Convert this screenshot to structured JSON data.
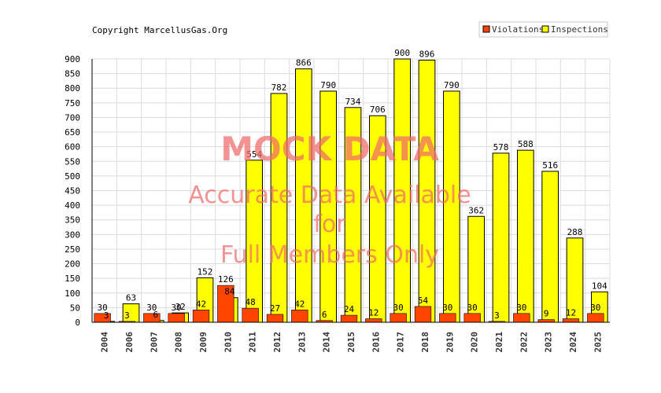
{
  "chart_data": {
    "type": "bar",
    "copyright": "Copyright MarcellusGas.Org",
    "categories": [
      "2004",
      "2006",
      "2007",
      "2008",
      "2009",
      "2010",
      "2011",
      "2012",
      "2013",
      "2014",
      "2015",
      "2016",
      "2017",
      "2018",
      "2019",
      "2020",
      "2021",
      "2022",
      "2023",
      "2024",
      "2025"
    ],
    "series": [
      {
        "name": "Violations",
        "color": "#ff4500",
        "values": [
          30,
          3,
          30,
          30,
          42,
          126,
          48,
          27,
          42,
          6,
          24,
          12,
          30,
          54,
          30,
          30,
          3,
          30,
          9,
          12,
          30
        ]
      },
      {
        "name": "Inspections",
        "color": "#ffff00",
        "values": [
          3,
          63,
          6,
          32,
          152,
          84,
          554,
          782,
          866,
          790,
          734,
          706,
          900,
          896,
          790,
          362,
          578,
          588,
          516,
          288,
          104
        ]
      }
    ],
    "ylim": [
      0,
      900
    ],
    "yticks": [
      0,
      50,
      100,
      150,
      200,
      250,
      300,
      350,
      400,
      450,
      500,
      550,
      600,
      650,
      700,
      750,
      800,
      850,
      900
    ],
    "grid": true,
    "legend_position": "top-right",
    "watermark": {
      "line1": "MOCK DATA",
      "line2": "Accurate Data Available",
      "line3": "for",
      "line4": "Full Members Only"
    }
  }
}
